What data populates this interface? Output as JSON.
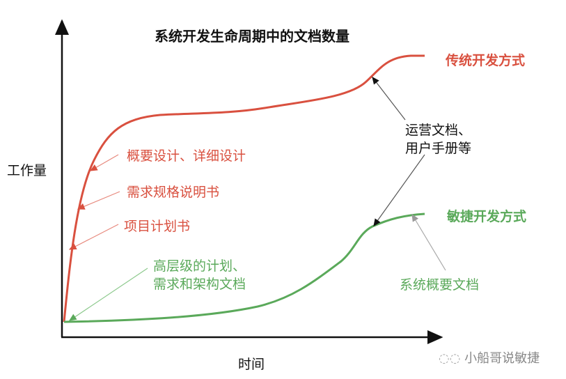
{
  "title": "系统开发生命周期中的文档数量",
  "axes": {
    "y_label": "工作量",
    "x_label": "时间"
  },
  "series": [
    {
      "name": "传统开发方式",
      "color": "#d9503f"
    },
    {
      "name": "敏捷开发方式",
      "color": "#5aa95a"
    }
  ],
  "annotations": {
    "outline_design": "概要设计、详细设计",
    "requirements_spec": "需求规格说明书",
    "project_plan": "项目计划书",
    "high_level_line1": "高层级的计划、",
    "high_level_line2": "需求和架构文档",
    "ops_docs_line1": "运营文档、",
    "ops_docs_line2": "用户手册等",
    "system_overview": "系统概要文档"
  },
  "watermark": "小船哥说敏捷"
}
